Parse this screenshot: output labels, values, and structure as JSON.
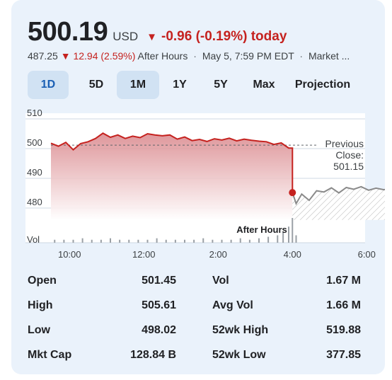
{
  "quote": {
    "price": "500.19",
    "currency": "USD",
    "change_arrow": "▼",
    "change_text": "-0.96 (-0.19%) today",
    "after_hours_price": "487.25",
    "after_hours_arrow": "▼",
    "after_hours_change": "12.94 (2.59%)",
    "after_hours_label": "After Hours",
    "timestamp": "May 5, 7:59 PM EDT",
    "market_note": "Market ...",
    "separator": "·"
  },
  "tabs": [
    {
      "label": "1D",
      "state": "active"
    },
    {
      "label": "5D",
      "state": ""
    },
    {
      "label": "1M",
      "state": "selected"
    },
    {
      "label": "1Y",
      "state": ""
    },
    {
      "label": "5Y",
      "state": ""
    },
    {
      "label": "Max",
      "state": ""
    },
    {
      "label": "Projection",
      "state": ""
    }
  ],
  "chart_data": {
    "type": "line",
    "title": "",
    "xlabel": "",
    "ylabel": "",
    "ylim": [
      476,
      512
    ],
    "y_ticks": [
      "510",
      "500",
      "490",
      "480"
    ],
    "y_tick_values": [
      510,
      500,
      490,
      480
    ],
    "x_ticks": [
      "10:00",
      "12:00",
      "2:00",
      "4:00",
      "6:00"
    ],
    "x_tick_hours": [
      10,
      12,
      14,
      16,
      18
    ],
    "previous_close": {
      "label_lines": [
        "Previous",
        "Close:",
        "501.15"
      ],
      "value": 501.15
    },
    "volume_label": "Vol",
    "after_hours_label": "After Hours",
    "grid": true,
    "series": [
      {
        "label": "regular",
        "color": "#c5221f",
        "x": [
          9.5,
          9.7,
          9.9,
          10.1,
          10.3,
          10.5,
          10.7,
          10.9,
          11.1,
          11.3,
          11.5,
          11.7,
          11.9,
          12.1,
          12.3,
          12.5,
          12.7,
          12.9,
          13.1,
          13.3,
          13.5,
          13.7,
          13.9,
          14.1,
          14.3,
          14.5,
          14.7,
          14.9,
          15.1,
          15.3,
          15.5,
          15.7,
          15.9,
          16.0
        ],
        "y": [
          501.8,
          500.8,
          502.1,
          499.6,
          501.7,
          502.3,
          503.4,
          505.2,
          503.8,
          504.6,
          503.4,
          504.2,
          503.7,
          505.0,
          504.6,
          504.3,
          504.6,
          503.2,
          503.9,
          502.7,
          503.1,
          502.4,
          503.3,
          502.9,
          503.5,
          502.6,
          503.2,
          502.8,
          502.5,
          502.3,
          501.4,
          501.9,
          500.2,
          500.19
        ]
      },
      {
        "label": "after_hours",
        "color": "#8a8a8a",
        "x": [
          16.0,
          16.1,
          16.25,
          16.45,
          16.65,
          16.85,
          17.05,
          17.25,
          17.45,
          17.65,
          17.85,
          18.05,
          18.25,
          18.45,
          18.65,
          18.85,
          19.05,
          19.25,
          19.45,
          19.65,
          19.85,
          20.0
        ],
        "y": [
          485.2,
          481.5,
          484.7,
          482.6,
          485.8,
          485.4,
          486.8,
          485.1,
          486.9,
          486.3,
          487.2,
          486.0,
          486.7,
          486.2,
          486.4,
          486.0,
          486.7,
          486.1,
          486.8,
          486.4,
          487.0,
          487.25
        ]
      }
    ],
    "volume": {
      "x": [
        9.6,
        9.85,
        10.1,
        10.35,
        10.6,
        10.85,
        11.1,
        11.35,
        11.6,
        11.85,
        12.1,
        12.35,
        12.6,
        12.85,
        13.1,
        13.35,
        13.6,
        13.85,
        14.1,
        14.35,
        14.6,
        14.85,
        15.1,
        15.35,
        15.6,
        15.75,
        15.9,
        16.0,
        16.1
      ],
      "values": [
        0.12,
        0.12,
        0.12,
        0.18,
        0.12,
        0.12,
        0.18,
        0.12,
        0.12,
        0.12,
        0.12,
        0.18,
        0.12,
        0.12,
        0.12,
        0.12,
        0.18,
        0.12,
        0.12,
        0.12,
        0.18,
        0.12,
        0.18,
        0.24,
        0.3,
        0.45,
        0.65,
        1.0,
        0.3
      ]
    },
    "colors": {
      "regular": "#c5221f",
      "after_hours": "#8a8a8a",
      "grid": "#cfd8e3",
      "volume": "#9aa0a6"
    }
  },
  "stats": [
    {
      "label": "Open",
      "value": "501.45",
      "label2": "Vol",
      "value2": "1.67 M"
    },
    {
      "label": "High",
      "value": "505.61",
      "label2": "Avg Vol",
      "value2": "1.66 M"
    },
    {
      "label": "Low",
      "value": "498.02",
      "label2": "52wk High",
      "value2": "519.88"
    },
    {
      "label": "Mkt Cap",
      "value": "128.84 B",
      "label2": "52wk Low",
      "value2": "377.85"
    }
  ]
}
